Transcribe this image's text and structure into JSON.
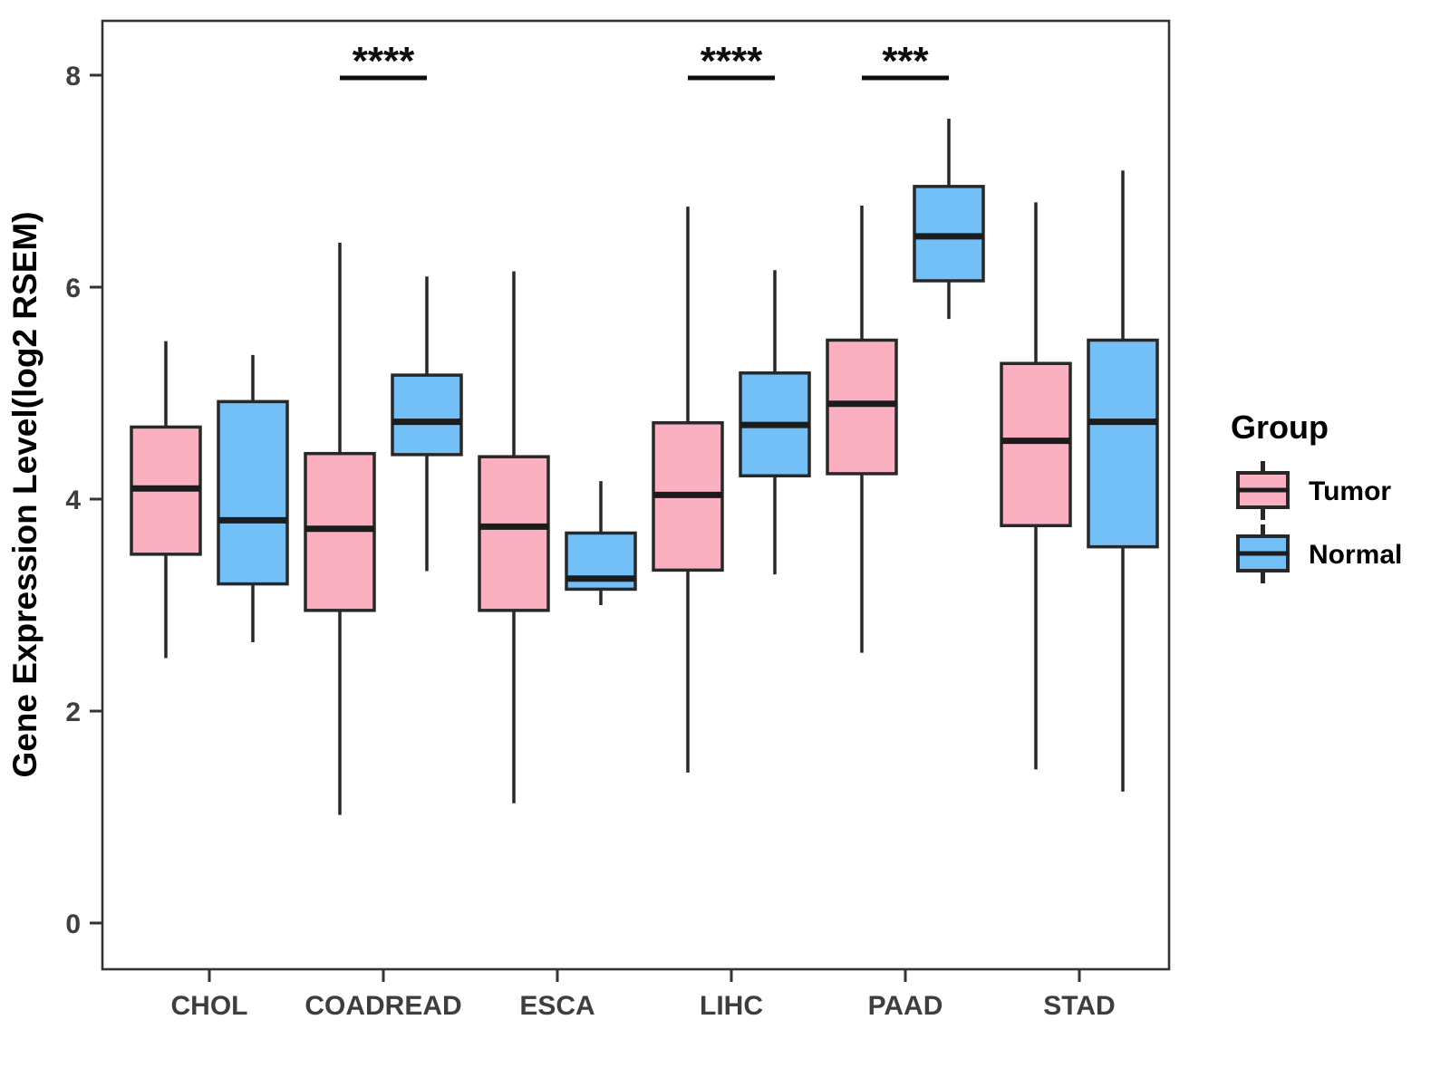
{
  "chart_data": {
    "type": "boxplot",
    "title": "",
    "xlabel": "",
    "ylabel": "Gene Expression Level(log2 RSEM)",
    "ylim": [
      -0.45,
      8.5
    ],
    "yticks": [
      0,
      2,
      4,
      6,
      8
    ],
    "grid": false,
    "categories": [
      "CHOL",
      "COADREAD",
      "ESCA",
      "LIHC",
      "PAAD",
      "STAD"
    ],
    "stats_order": [
      "min",
      "q1",
      "median",
      "q3",
      "max"
    ],
    "groups": [
      {
        "name": "Tumor",
        "color": "#FBB0C2",
        "boxes": [
          {
            "category": "CHOL",
            "stats": [
              2.5,
              3.48,
              4.1,
              4.68,
              5.49
            ]
          },
          {
            "category": "COADREAD",
            "stats": [
              1.02,
              2.95,
              3.72,
              4.43,
              6.42
            ]
          },
          {
            "category": "ESCA",
            "stats": [
              1.13,
              2.95,
              3.74,
              4.4,
              6.15
            ]
          },
          {
            "category": "LIHC",
            "stats": [
              1.42,
              3.33,
              4.04,
              4.72,
              6.76
            ]
          },
          {
            "category": "PAAD",
            "stats": [
              2.55,
              4.24,
              4.9,
              5.5,
              6.77
            ]
          },
          {
            "category": "STAD",
            "stats": [
              1.45,
              3.75,
              4.55,
              5.28,
              6.8
            ]
          }
        ]
      },
      {
        "name": "Normal",
        "color": "#73BFF7",
        "boxes": [
          {
            "category": "CHOL",
            "stats": [
              2.65,
              3.2,
              3.8,
              4.92,
              5.36
            ]
          },
          {
            "category": "COADREAD",
            "stats": [
              3.32,
              4.42,
              4.73,
              5.17,
              6.1
            ]
          },
          {
            "category": "ESCA",
            "stats": [
              3.0,
              3.15,
              3.25,
              3.68,
              4.17
            ]
          },
          {
            "category": "LIHC",
            "stats": [
              3.29,
              4.22,
              4.7,
              5.19,
              6.16
            ]
          },
          {
            "category": "PAAD",
            "stats": [
              5.7,
              6.06,
              6.48,
              6.95,
              7.59
            ]
          },
          {
            "category": "STAD",
            "stats": [
              1.24,
              3.55,
              4.73,
              5.5,
              7.1
            ]
          }
        ]
      }
    ],
    "significance": [
      {
        "category": "COADREAD",
        "label": "****"
      },
      {
        "category": "LIHC",
        "label": "****"
      },
      {
        "category": "PAAD",
        "label": "***"
      }
    ],
    "legend": {
      "title": "Group",
      "position": "right"
    },
    "style_colors": {
      "box_border": "#282828",
      "median_line": "#1c1c1c",
      "panel_border": "#333333",
      "tick_text": "#3e3e3e",
      "significance": "#0d0d0d"
    }
  }
}
